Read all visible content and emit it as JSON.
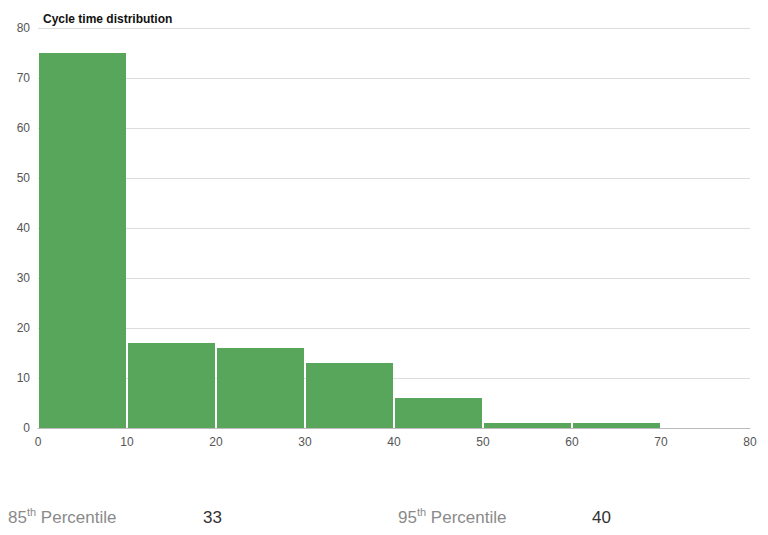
{
  "chart_data": {
    "type": "histogram",
    "title": "Cycle time distribution",
    "bins": [
      0,
      10,
      20,
      30,
      40,
      50,
      60,
      70,
      80
    ],
    "values": [
      75,
      17,
      16,
      13,
      6,
      1,
      1,
      0
    ],
    "color": "#58a55c",
    "xlim": [
      0,
      80
    ],
    "xticks": [
      0,
      10,
      20,
      30,
      40,
      50,
      60,
      70,
      80
    ],
    "ylim": [
      0,
      80
    ],
    "yticks": [
      0,
      10,
      20,
      30,
      40,
      50,
      60,
      70,
      80
    ],
    "grid": true,
    "annotations": [
      {
        "label": "85th Percentile",
        "value": 33
      },
      {
        "label": "95th Percentile",
        "value": 40
      }
    ]
  }
}
